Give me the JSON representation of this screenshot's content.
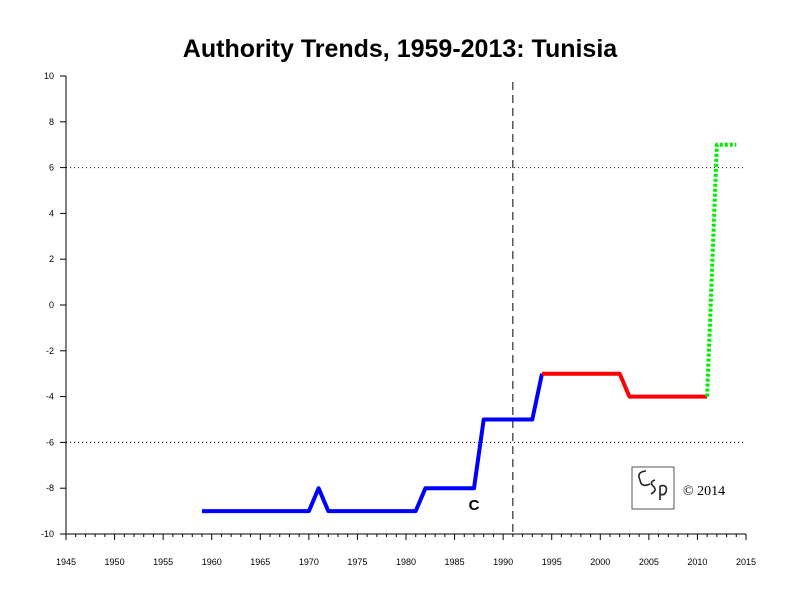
{
  "chart_data": {
    "type": "line",
    "title": "Authority Trends, 1959-2013: Tunisia",
    "xlabel": "",
    "ylabel": "",
    "xlim": [
      1945,
      2015
    ],
    "ylim": [
      -10,
      10
    ],
    "x_ticks": [
      1945,
      1950,
      1955,
      1960,
      1965,
      1970,
      1975,
      1980,
      1985,
      1990,
      1995,
      2000,
      2005,
      2010,
      2015
    ],
    "y_ticks": [
      10,
      8,
      6,
      4,
      2,
      0,
      -2,
      -4,
      -6,
      -8,
      -10
    ],
    "reference_lines": [
      6,
      -6
    ],
    "event_line_x": 1991,
    "series": [
      {
        "color": "#0000ff",
        "style": "solid",
        "points": [
          [
            1959,
            -9
          ],
          [
            1970,
            -9
          ],
          [
            1971,
            -8
          ],
          [
            1972,
            -9
          ],
          [
            1981,
            -9
          ],
          [
            1982,
            -8
          ],
          [
            1987,
            -8
          ],
          [
            1988,
            -5
          ],
          [
            1993,
            -5
          ],
          [
            1994,
            -3
          ]
        ]
      },
      {
        "color": "#ff0000",
        "style": "solid",
        "points": [
          [
            1994,
            -3
          ],
          [
            2002,
            -3
          ],
          [
            2003,
            -4
          ],
          [
            2011,
            -4
          ]
        ]
      },
      {
        "color": "#00ee00",
        "style": "dotted",
        "points": [
          [
            2011,
            -4
          ],
          [
            2012,
            7
          ],
          [
            2014,
            7
          ]
        ]
      }
    ],
    "annotations": [
      {
        "text": "C",
        "x": 1987,
        "y": -8.7
      }
    ],
    "copyright": "© 2014",
    "logo_text": "CSP"
  }
}
